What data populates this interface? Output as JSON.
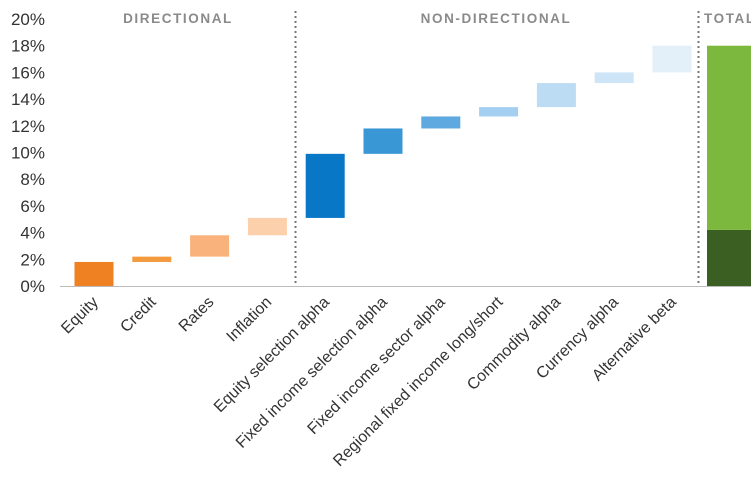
{
  "chart_data": {
    "type": "bar",
    "subtype": "waterfall",
    "title": "",
    "xlabel": "",
    "ylabel": "",
    "ylim": [
      0,
      20
    ],
    "y_tick_labels": [
      "0%",
      "2%",
      "4%",
      "6%",
      "8%",
      "10%",
      "12%",
      "14%",
      "16%",
      "18%",
      "20%"
    ],
    "grid": false,
    "legend": "none",
    "groups": [
      {
        "label": "DIRECTIONAL",
        "categories": [
          "Equity",
          "Credit",
          "Rates",
          "Inflation"
        ]
      },
      {
        "label": "NON-DIRECTIONAL",
        "categories": [
          "Equity selection alpha",
          "Fixed income selection alpha",
          "Fixed income sector alpha",
          "Regional fixed income long/short",
          "Commodity alpha",
          "Currency alpha",
          "Alternative beta"
        ]
      },
      {
        "label": "TOTAL",
        "categories": []
      }
    ],
    "categories": [
      "Equity",
      "Credit",
      "Rates",
      "Inflation",
      "Equity selection alpha",
      "Fixed income selection alpha",
      "Fixed income sector alpha",
      "Regional fixed income long/short",
      "Commodity alpha",
      "Currency alpha",
      "Alternative beta"
    ],
    "bars": [
      {
        "category": "Equity",
        "start": 0.0,
        "end": 1.8,
        "color": "#f08122"
      },
      {
        "category": "Credit",
        "start": 1.8,
        "end": 2.2,
        "color": "#f49a3f"
      },
      {
        "category": "Rates",
        "start": 2.2,
        "end": 3.8,
        "color": "#fab27c"
      },
      {
        "category": "Inflation",
        "start": 3.8,
        "end": 5.1,
        "color": "#fcd0aa"
      },
      {
        "category": "Equity selection alpha",
        "start": 5.1,
        "end": 9.9,
        "color": "#0878c6"
      },
      {
        "category": "Fixed income selection alpha",
        "start": 9.9,
        "end": 11.8,
        "color": "#3a97d5"
      },
      {
        "category": "Fixed income sector alpha",
        "start": 11.8,
        "end": 12.7,
        "color": "#5ea9df"
      },
      {
        "category": "Regional fixed income long/short",
        "start": 12.7,
        "end": 13.4,
        "color": "#a5cff0"
      },
      {
        "category": "Commodity alpha",
        "start": 13.4,
        "end": 15.2,
        "color": "#bcdcf4"
      },
      {
        "category": "Currency alpha",
        "start": 15.2,
        "end": 16.0,
        "color": "#cde5f7"
      },
      {
        "category": "Alternative beta",
        "start": 16.0,
        "end": 18.0,
        "color": "#e3f0fa"
      }
    ],
    "total": {
      "category": "",
      "segments": [
        {
          "start": 0.0,
          "end": 4.2,
          "color": "#3b5e23"
        },
        {
          "start": 4.2,
          "end": 18.0,
          "color": "#7cb83e"
        }
      ]
    },
    "separator_color": "#777777",
    "axis_color": "#bbbbbb"
  }
}
